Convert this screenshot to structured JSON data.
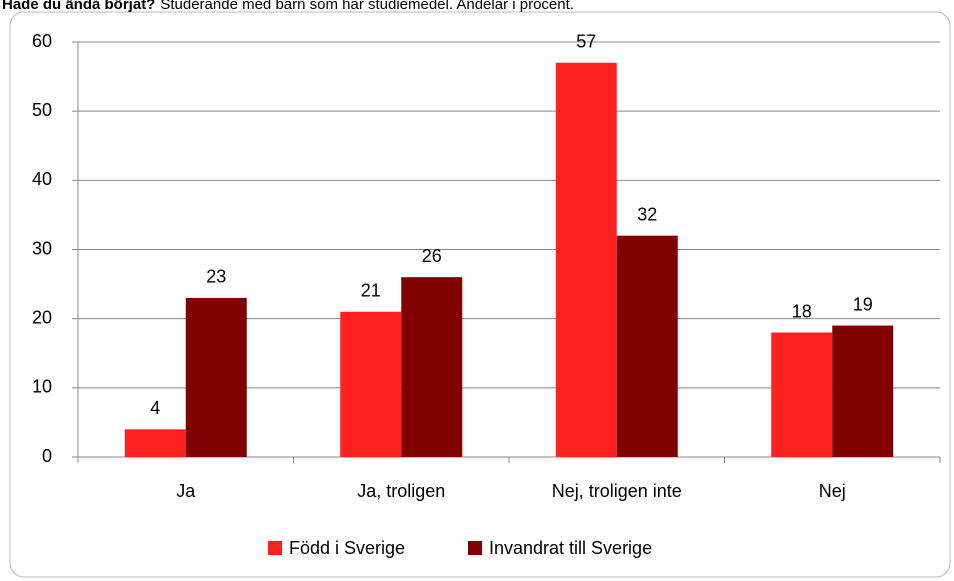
{
  "chart_data": {
    "type": "bar",
    "title": "Hade du ändå börjat?",
    "subtitle": "Studerande med barn som har studiemedel. Andelar i procent.",
    "categories": [
      "Ja",
      "Ja, troligen",
      "Nej, troligen inte",
      "Nej"
    ],
    "series": [
      {
        "name": "Född i Sverige",
        "color": "#ff2121",
        "values": [
          4,
          21,
          57,
          18
        ]
      },
      {
        "name": "Invandrat till Sverige",
        "color": "#800000",
        "values": [
          23,
          26,
          32,
          19
        ]
      }
    ],
    "ylim": [
      0,
      60
    ],
    "yticks": [
      0,
      10,
      20,
      30,
      40,
      50,
      60
    ],
    "grid": true,
    "legend": "bottom"
  }
}
